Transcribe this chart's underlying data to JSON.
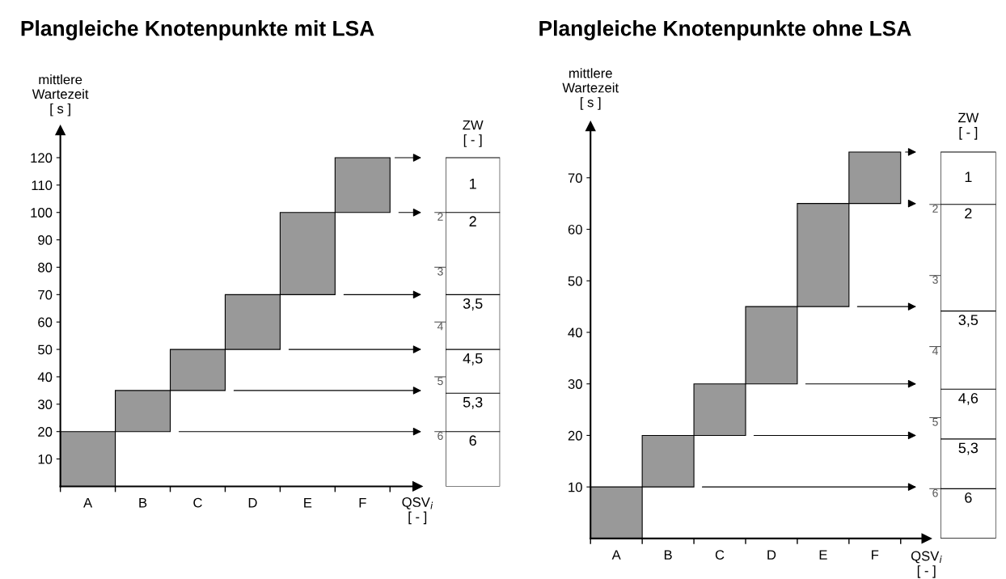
{
  "chart_data": [
    {
      "type": "bar",
      "title": "Plangleiche Knotenpunkte mit LSA",
      "ylabel": "mittlere\nWartezeit\n[ s ]",
      "xlabel": "QSV$_{i}$\n[ - ]",
      "y2label": "ZW\n[ - ]",
      "categories": [
        "A",
        "B",
        "C",
        "D",
        "E",
        "F"
      ],
      "values": [
        20,
        15,
        15,
        20,
        30,
        20
      ],
      "base": [
        0,
        20,
        35,
        50,
        70,
        100
      ],
      "color": "#999999",
      "ylim": [
        0,
        130
      ],
      "yticks": [
        10,
        20,
        30,
        40,
        50,
        60,
        70,
        80,
        90,
        100,
        110,
        120
      ],
      "y2lim": [
        7,
        0.5
      ],
      "y2ticks": [
        2,
        3,
        4,
        5,
        6
      ],
      "ref_lines": [
        {
          "axis": "y2",
          "value": 2,
          "label": "2"
        },
        {
          "axis": "y2",
          "value": 3.5,
          "label": "3,5"
        },
        {
          "axis": "y2",
          "value": 4.5,
          "label": "4,5"
        },
        {
          "axis": "y2",
          "value": 5.3,
          "label": "5,3"
        },
        {
          "axis": "y2",
          "value": 6,
          "label": "6"
        }
      ],
      "annotations": [
        "1"
      ]
    },
    {
      "type": "bar",
      "title": "Plangleiche Knotenpunkte ohne LSA",
      "ylabel": "mittlere\nWartezeit\n[ s ]",
      "xlabel": "QSV$_{i}$\n[ - ]",
      "y2label": "ZW\n[ - ]",
      "categories": [
        "A",
        "B",
        "C",
        "D",
        "E",
        "F"
      ],
      "values": [
        10,
        10,
        10,
        15,
        20,
        10
      ],
      "base": [
        0,
        10,
        20,
        30,
        45,
        65
      ],
      "color": "#999999",
      "ylim": [
        0,
        80
      ],
      "yticks": [
        10,
        20,
        30,
        40,
        50,
        60,
        70
      ],
      "y2lim": [
        6.7,
        0.9
      ],
      "y2ticks": [
        2,
        3,
        4,
        5,
        6
      ],
      "ref_lines": [
        {
          "axis": "y2",
          "value": 2,
          "label": "2"
        },
        {
          "axis": "y2",
          "value": 3.5,
          "label": "3,5"
        },
        {
          "axis": "y2",
          "value": 4.6,
          "label": "4,6"
        },
        {
          "axis": "y2",
          "value": 5.3,
          "label": "5,3"
        },
        {
          "axis": "y2",
          "value": 6,
          "label": "6"
        }
      ],
      "annotations": [
        "1"
      ]
    }
  ]
}
